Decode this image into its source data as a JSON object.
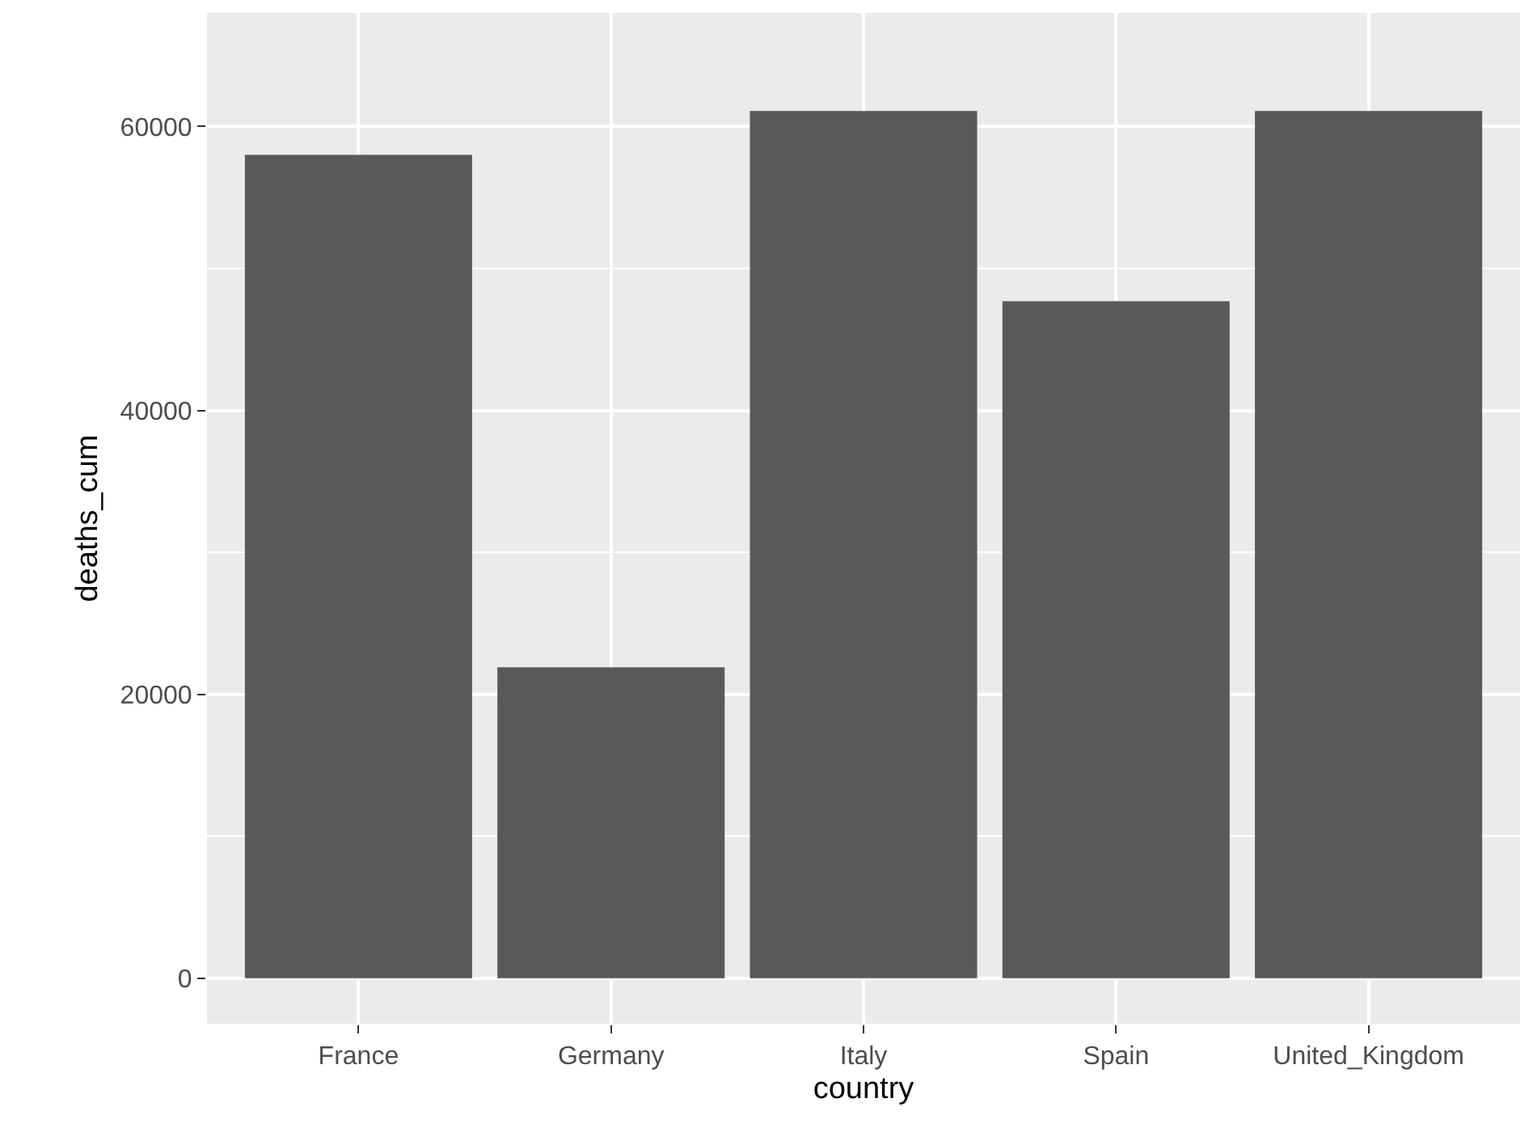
{
  "chart_data": {
    "type": "bar",
    "xlabel": "country",
    "ylabel": "deaths_cum",
    "categories": [
      "France",
      "Germany",
      "Italy",
      "Spain",
      "United_Kingdom"
    ],
    "values": [
      58000,
      21900,
      61100,
      47700,
      61100
    ],
    "color": "#595959",
    "ylim": [
      -3200,
      68000
    ],
    "yticks": [
      0,
      20000,
      40000,
      60000
    ],
    "grid": true
  }
}
